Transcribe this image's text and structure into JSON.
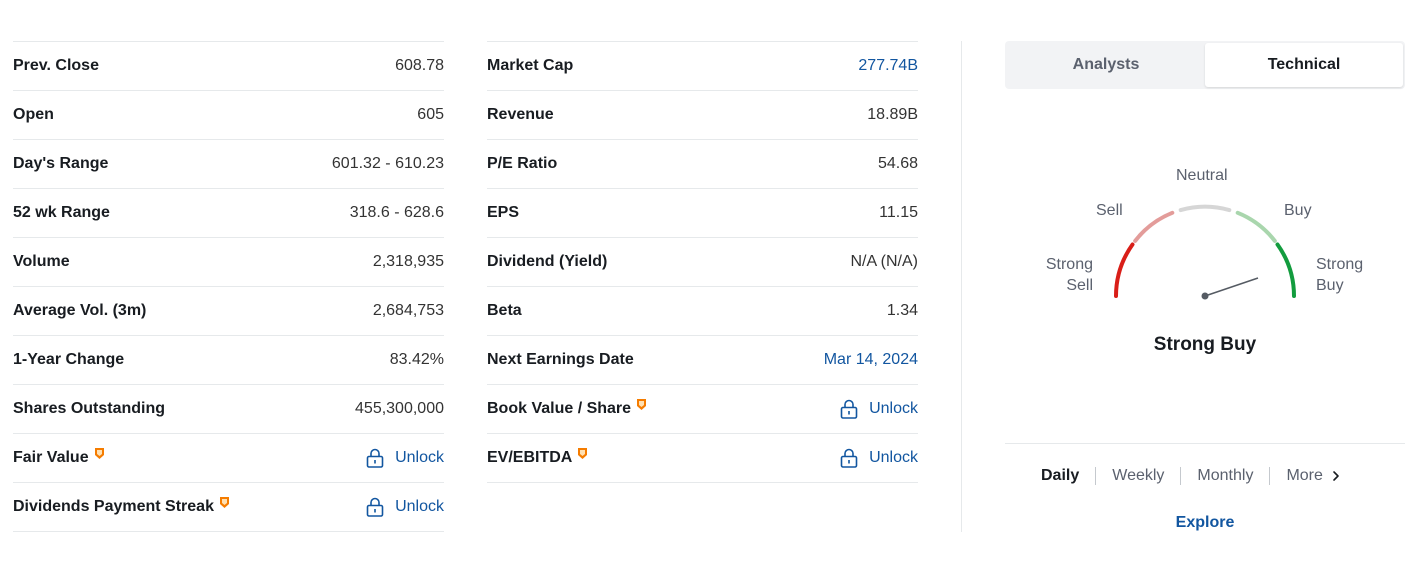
{
  "left_stats": [
    {
      "label": "Prev. Close",
      "value": "608.78"
    },
    {
      "label": "Open",
      "value": "605"
    },
    {
      "label": "Day's Range",
      "value": "601.32 - 610.23"
    },
    {
      "label": "52 wk Range",
      "value": "318.6 - 628.6"
    },
    {
      "label": "Volume",
      "value": "2,318,935"
    },
    {
      "label": "Average Vol. (3m)",
      "value": "2,684,753"
    },
    {
      "label": "1-Year Change",
      "value": "83.42%"
    },
    {
      "label": "Shares Outstanding",
      "value": "455,300,000"
    },
    {
      "label": "Fair Value",
      "value": "Unlock"
    },
    {
      "label": "Dividends Payment Streak",
      "value": "Unlock"
    }
  ],
  "right_stats": [
    {
      "label": "Market Cap",
      "value": "277.74B"
    },
    {
      "label": "Revenue",
      "value": "18.89B"
    },
    {
      "label": "P/E Ratio",
      "value": "54.68"
    },
    {
      "label": "EPS",
      "value": "11.15"
    },
    {
      "label": "Dividend (Yield)",
      "value": "N/A (N/A)"
    },
    {
      "label": "Beta",
      "value": "1.34"
    },
    {
      "label": "Next Earnings Date",
      "value": "Mar 14, 2024"
    },
    {
      "label": "Book Value / Share",
      "value": "Unlock"
    },
    {
      "label": "EV/EBITDA",
      "value": "Unlock"
    }
  ],
  "tabs": {
    "analysts": "Analysts",
    "technical": "Technical",
    "active": "technical"
  },
  "gauge": {
    "labels": {
      "neutral": "Neutral",
      "sell": "Sell",
      "buy": "Buy",
      "strong_sell": [
        "Strong",
        "Sell"
      ],
      "strong_buy": [
        "Strong",
        "Buy"
      ]
    },
    "result": "Strong Buy",
    "colors": {
      "strong_sell": "#d91e18",
      "sell": "#e39c9a",
      "neutral": "#d6d6d6",
      "buy": "#a9d6ad",
      "strong_buy": "#139c3e"
    }
  },
  "periods": {
    "daily": "Daily",
    "weekly": "Weekly",
    "monthly": "Monthly",
    "more": "More",
    "active": "daily"
  },
  "explore_label": "Explore",
  "accent_color": "#1256a0",
  "pro_badge_color": "#f57c00"
}
